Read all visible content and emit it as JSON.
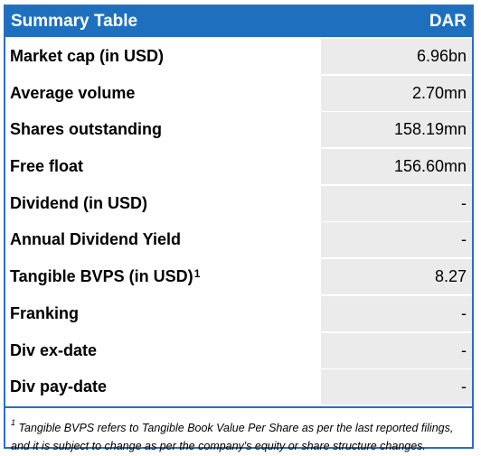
{
  "header": {
    "title": "Summary Table",
    "ticker": "DAR"
  },
  "rows": [
    {
      "label": "Market cap (in USD)",
      "sup": "",
      "value": "6.96bn"
    },
    {
      "label": "Average volume",
      "sup": "",
      "value": "2.70mn"
    },
    {
      "label": "Shares outstanding",
      "sup": "",
      "value": "158.19mn"
    },
    {
      "label": "Free float",
      "sup": "",
      "value": "156.60mn"
    },
    {
      "label": "Dividend (in USD)",
      "sup": "",
      "value": "-"
    },
    {
      "label": "Annual Dividend Yield",
      "sup": "",
      "value": "-"
    },
    {
      "label": "Tangible BVPS (in USD)",
      "sup": "1",
      "value": "8.27"
    },
    {
      "label": "Franking",
      "sup": "",
      "value": "-"
    },
    {
      "label": "Div ex-date",
      "sup": "",
      "value": "-"
    },
    {
      "label": "Div pay-date",
      "sup": "",
      "value": "-"
    }
  ],
  "footnote": {
    "marker": "1",
    "text": "Tangible BVPS refers to Tangible Book Value Per Share as per the last reported filings, and it is subject to change as per the company's equity or share structure changes."
  },
  "colors": {
    "header_bg": "#1e70bf",
    "border": "#2a6fbc",
    "value_bg": "#ebebeb"
  }
}
